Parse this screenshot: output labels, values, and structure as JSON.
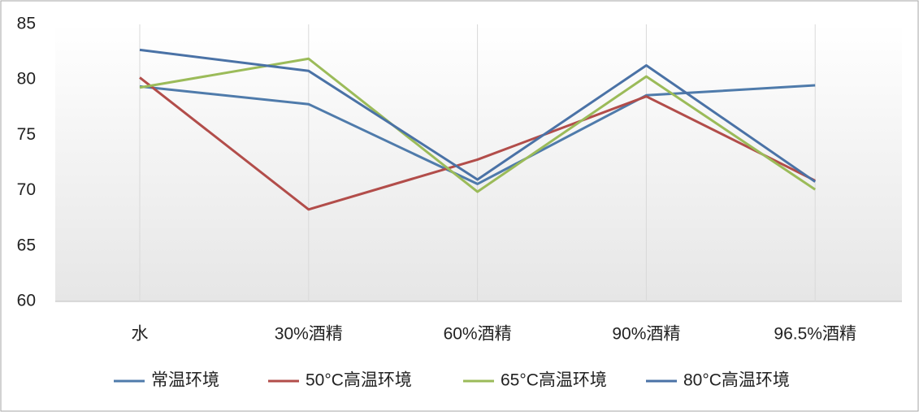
{
  "chart_data": {
    "type": "line",
    "categories": [
      "水",
      "30%酒精",
      "60%酒精",
      "90%酒精",
      "96.5%酒精"
    ],
    "series": [
      {
        "name": "常温环境",
        "color": "#4f7bab",
        "values": [
          79.4,
          77.8,
          70.6,
          78.6,
          79.5
        ]
      },
      {
        "name": "50°C高温环境",
        "color": "#b24d4a",
        "values": [
          80.2,
          68.3,
          72.8,
          78.5,
          70.9
        ]
      },
      {
        "name": "65°C高温环境",
        "color": "#9bbb59",
        "values": [
          79.3,
          81.9,
          69.9,
          80.3,
          70.1
        ]
      },
      {
        "name": "80°C高温环境",
        "color": "#4a72a6",
        "values": [
          82.7,
          80.8,
          71.0,
          81.3,
          70.8
        ]
      }
    ],
    "ylim": [
      60,
      85
    ],
    "yticks": [
      60,
      65,
      70,
      75,
      80,
      85
    ],
    "grid": "x",
    "legend": "bottom"
  }
}
